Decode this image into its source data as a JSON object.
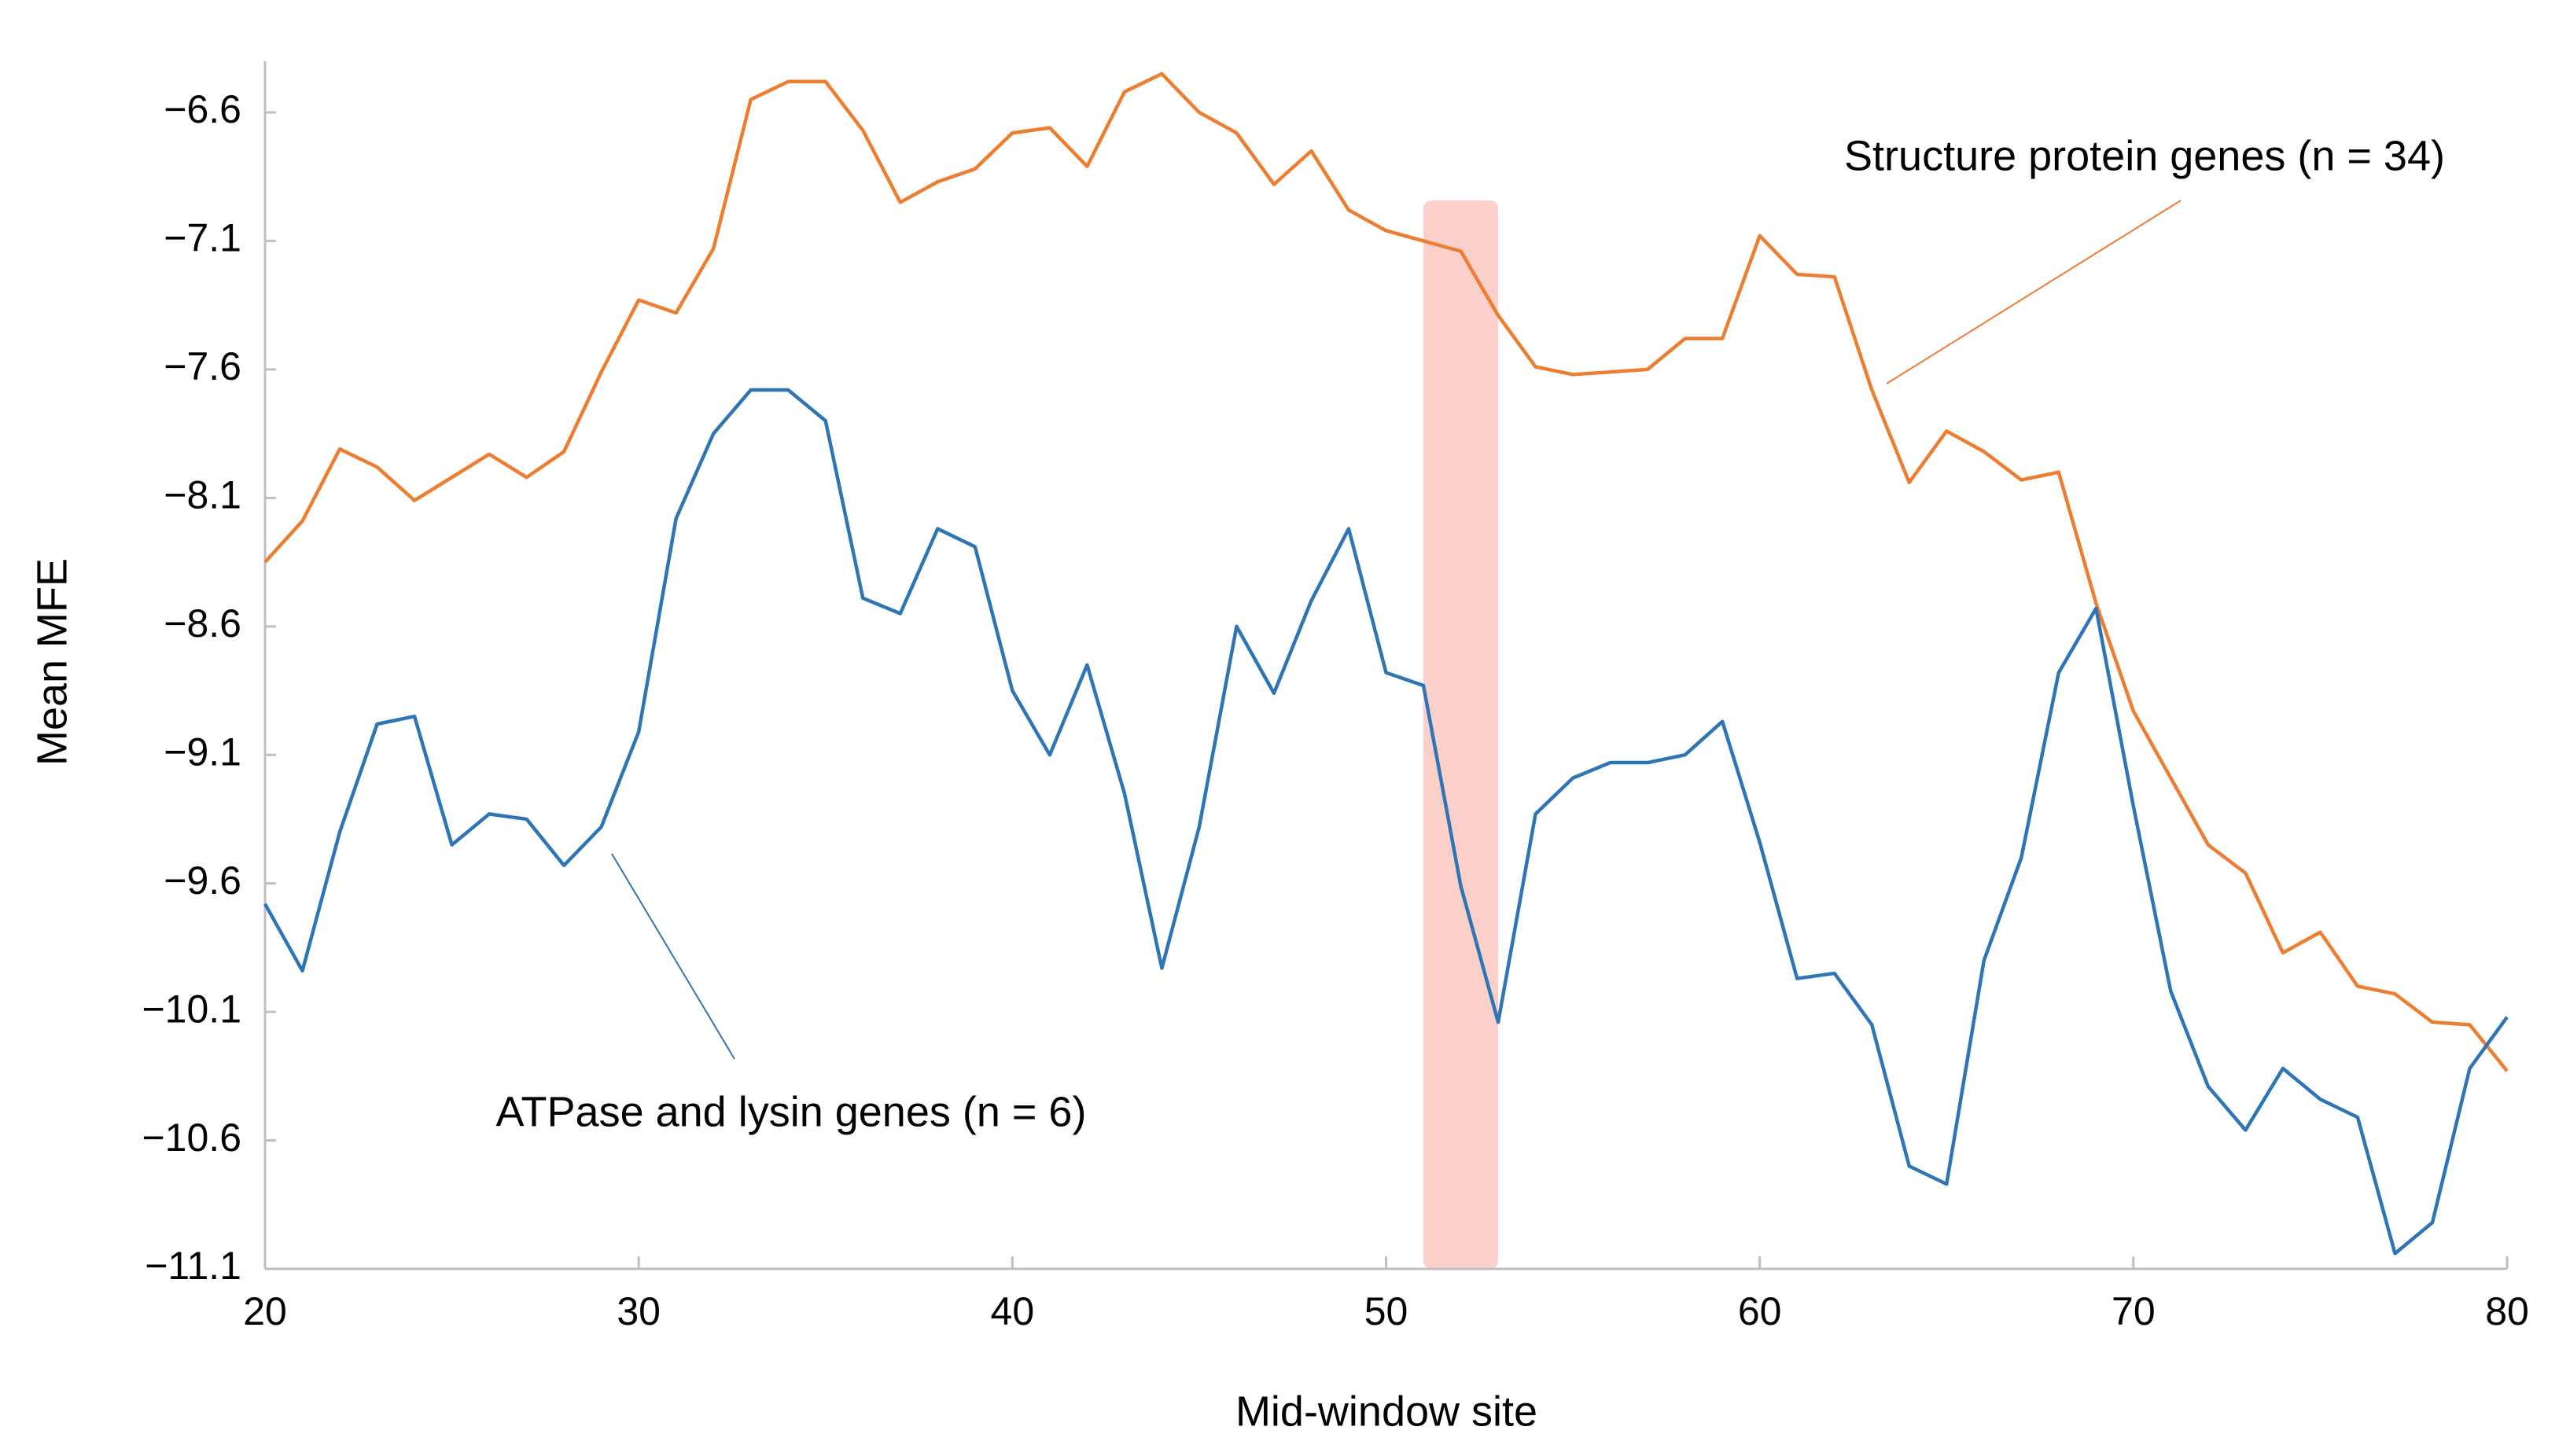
{
  "chart_data": {
    "type": "line",
    "x_label": "Mid-window site",
    "y_label": "Mean MFE",
    "x": [
      20,
      21,
      22,
      23,
      24,
      25,
      26,
      27,
      28,
      29,
      30,
      31,
      32,
      33,
      34,
      35,
      36,
      37,
      38,
      39,
      40,
      41,
      42,
      43,
      44,
      45,
      46,
      47,
      48,
      49,
      50,
      51,
      52,
      53,
      54,
      55,
      56,
      57,
      58,
      59,
      60,
      61,
      62,
      63,
      64,
      65,
      66,
      67,
      68,
      69,
      70,
      71,
      72,
      73,
      74,
      75,
      76,
      77,
      78,
      79,
      80
    ],
    "series": [
      {
        "name": "Structure protein genes (n = 34)",
        "color": "#ed7d31",
        "values": [
          -8.35,
          -8.19,
          -7.91,
          -7.98,
          -8.11,
          -8.02,
          -7.93,
          -8.02,
          -7.92,
          -7.61,
          -7.33,
          -7.38,
          -7.13,
          -6.55,
          -6.48,
          -6.48,
          -6.67,
          -6.95,
          -6.87,
          -6.82,
          -6.68,
          -6.66,
          -6.81,
          -6.52,
          -6.45,
          -6.6,
          -6.68,
          -6.88,
          -6.75,
          -6.98,
          -7.06,
          -7.1,
          -7.14,
          -7.39,
          -7.59,
          -7.62,
          -7.61,
          -7.6,
          -7.48,
          -7.48,
          -7.08,
          -7.23,
          -7.24,
          -7.68,
          -8.04,
          -7.84,
          -7.92,
          -8.03,
          -8.0,
          -8.51,
          -8.93,
          -9.19,
          -9.45,
          -9.56,
          -9.87,
          -9.79,
          -10.0,
          -10.03,
          -10.14,
          -10.15,
          -10.33
        ]
      },
      {
        "name": "ATPase and lysin genes (n = 6)",
        "color": "#2e75b6",
        "values": [
          -9.68,
          -9.94,
          -9.4,
          -8.98,
          -8.95,
          -9.45,
          -9.33,
          -9.35,
          -9.53,
          -9.38,
          -9.01,
          -8.18,
          -7.85,
          -7.68,
          -7.68,
          -7.8,
          -8.49,
          -8.55,
          -8.22,
          -8.29,
          -8.85,
          -9.1,
          -8.75,
          -9.25,
          -9.93,
          -9.38,
          -8.6,
          -8.86,
          -8.5,
          -8.22,
          -8.78,
          -8.83,
          -9.61,
          -10.14,
          -9.33,
          -9.19,
          -9.13,
          -9.13,
          -9.1,
          -8.97,
          -9.44,
          -9.97,
          -9.95,
          -10.15,
          -10.7,
          -10.77,
          -9.9,
          -9.5,
          -8.78,
          -8.53,
          -9.3,
          -10.02,
          -10.39,
          -10.56,
          -10.32,
          -10.44,
          -10.51,
          -11.04,
          -10.92,
          -10.32,
          -10.12
        ]
      }
    ],
    "highlight_x": [
      51,
      53
    ],
    "xlim": [
      20,
      80
    ],
    "xticks": [
      20,
      30,
      40,
      50,
      60,
      70,
      80
    ],
    "ylim": [
      -11.1,
      -6.4
    ],
    "yticks": [
      {
        "value": -6.6,
        "label": "−6.6"
      },
      {
        "value": -7.1,
        "label": "−7.1"
      },
      {
        "value": -7.6,
        "label": "−7.6"
      },
      {
        "value": -8.1,
        "label": "−8.1"
      },
      {
        "value": -8.6,
        "label": "−8.6"
      },
      {
        "value": -9.1,
        "label": "−9.1"
      },
      {
        "value": -9.6,
        "label": "−9.6"
      },
      {
        "value": -10.1,
        "label": "−10.1"
      },
      {
        "value": -10.6,
        "label": "−10.6"
      },
      {
        "value": -11.1,
        "label": "−11.1"
      }
    ],
    "grid": false
  }
}
